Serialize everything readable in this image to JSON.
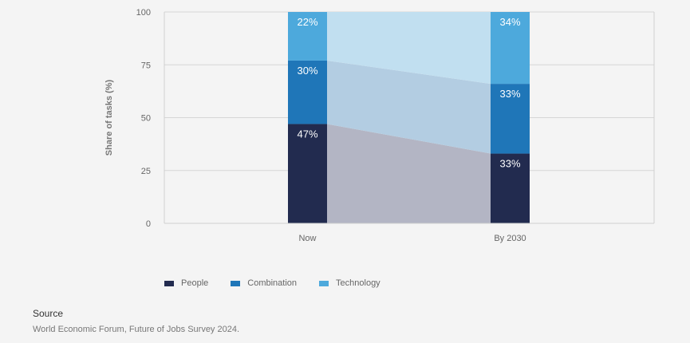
{
  "chart_data": {
    "type": "bar",
    "stacked": true,
    "categories": [
      "Now",
      "By 2030"
    ],
    "series": [
      {
        "name": "People",
        "values": [
          47,
          33
        ],
        "color": "#222b4f",
        "labels": [
          "47%",
          "33%"
        ]
      },
      {
        "name": "Combination",
        "values": [
          30,
          33
        ],
        "color": "#1f76b8",
        "labels": [
          "30%",
          "33%"
        ]
      },
      {
        "name": "Technology",
        "values": [
          22,
          34
        ],
        "color": "#4da9dc",
        "labels": [
          "22%",
          "34%"
        ]
      }
    ],
    "connector_colors": [
      "#b3b5c4",
      "#b3cde2",
      "#c1dff0"
    ],
    "ylabel": "Share of tasks (%)",
    "ylim": [
      0,
      100
    ],
    "yticks": [
      0,
      25,
      50,
      75,
      100
    ],
    "grid": true,
    "legend_position": "bottom-left"
  },
  "source": {
    "title": "Source",
    "text": "World Economic Forum, Future of Jobs Survey 2024."
  }
}
